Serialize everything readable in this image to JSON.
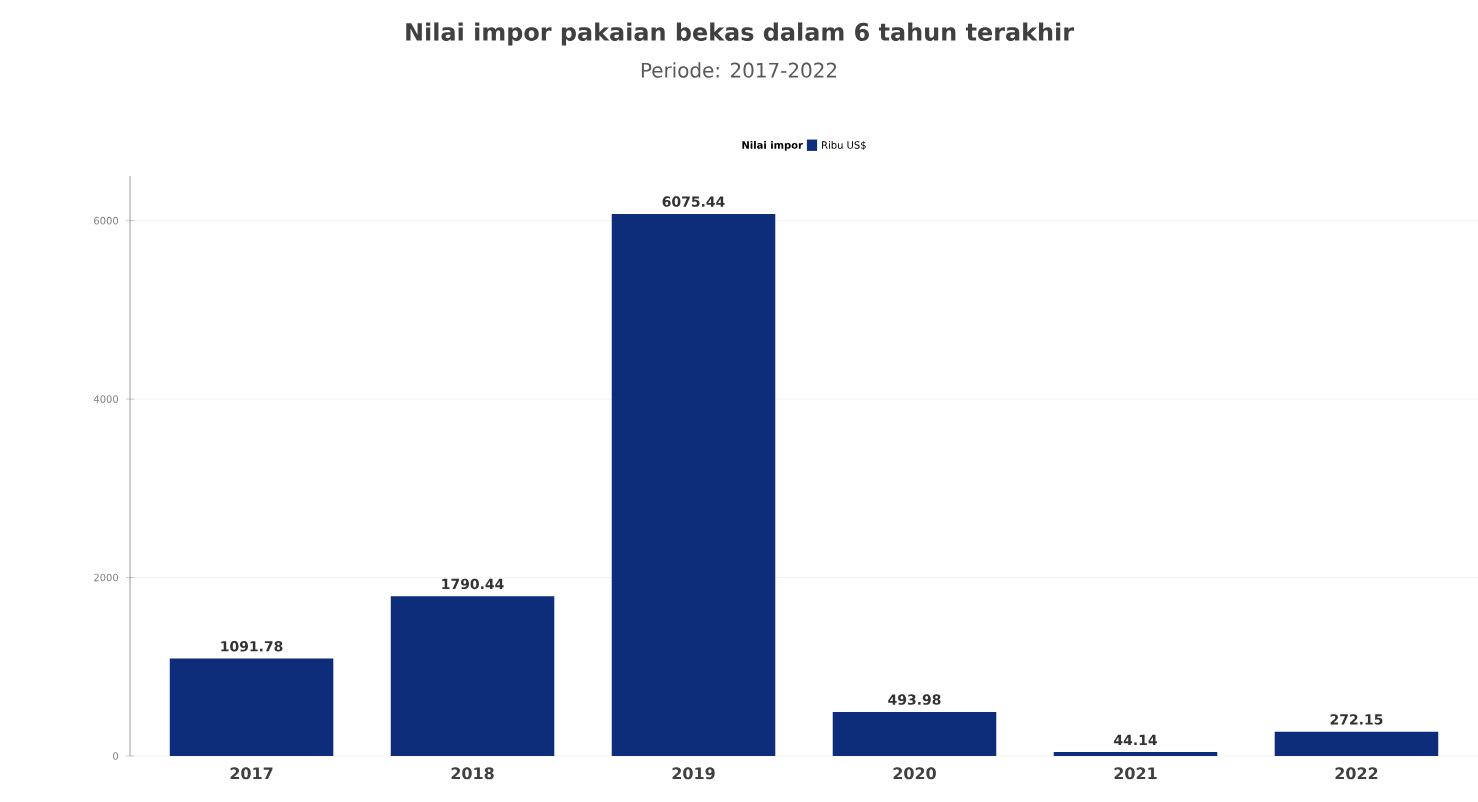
{
  "chart_data": {
    "type": "bar",
    "title": "Nilai impor pakaian bekas dalam 6 tahun terakhir",
    "subtitle": "Periode: 2017-2022",
    "categories": [
      "2017",
      "2018",
      "2019",
      "2020",
      "2021",
      "2022"
    ],
    "series": [
      {
        "name": "Ribu US$",
        "color": "#0d2c7a",
        "values": [
          1091.78,
          1790.44,
          6075.44,
          493.98,
          44.14,
          272.15
        ]
      }
    ],
    "legend_title": "Nilai impor",
    "legend": "top",
    "data_labels": true,
    "grid": "y",
    "ylim": [
      0,
      6500
    ],
    "yticks": [
      0,
      2000,
      4000,
      6000
    ]
  }
}
